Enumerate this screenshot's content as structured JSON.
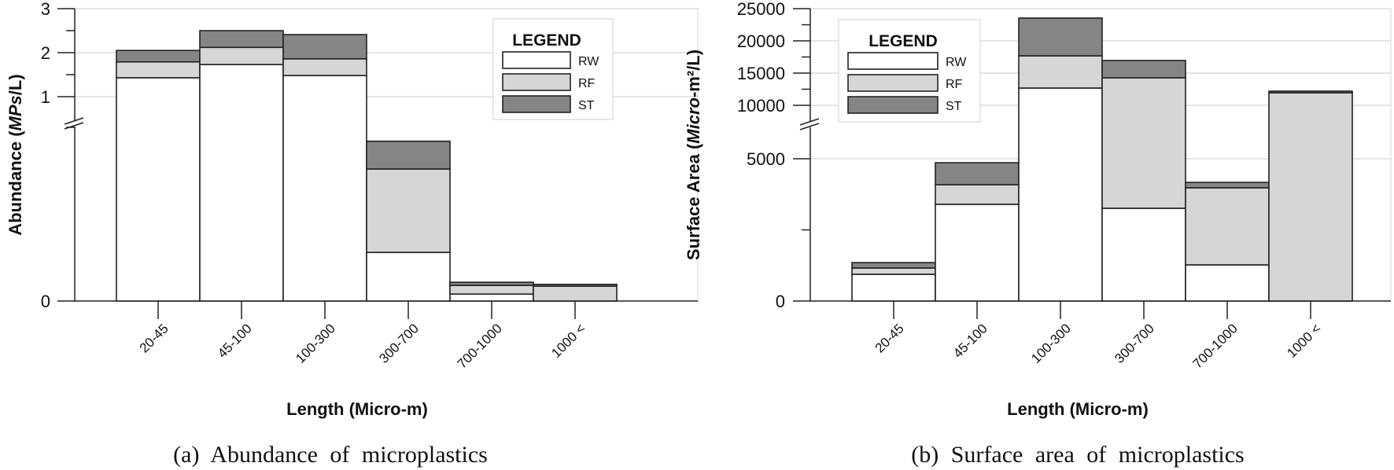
{
  "colors": {
    "RW": "#ffffff",
    "RF": "#d6d6d6",
    "ST": "#858585",
    "stroke": "#222222",
    "grid": "#c8c8c8"
  },
  "chart_data": [
    {
      "type": "bar",
      "stacked": true,
      "title": "(a) Abundance of microplastics",
      "xlabel": "Length (Micro-m)",
      "ylabel_parts": [
        "Abundance (",
        "MPs",
        "/L)"
      ],
      "ylim": [
        0,
        3
      ],
      "axis_break": [
        0.5,
        0.9
      ],
      "yticks": [
        "0",
        "1",
        "2",
        "3"
      ],
      "ytick_values": [
        0,
        1,
        2,
        3
      ],
      "grid": true,
      "legend": {
        "title": "LEGEND",
        "placement": "top-right",
        "entries": [
          "RW",
          "RF",
          "ST"
        ]
      },
      "categories": [
        "20-45",
        "45-100",
        "100-300",
        "300-700",
        "700-1000",
        "1000 <"
      ],
      "series": [
        {
          "name": "RW",
          "values": [
            1.43,
            1.73,
            1.48,
            0.14,
            0.02,
            0.0
          ]
        },
        {
          "name": "RF",
          "values": [
            0.36,
            0.39,
            0.38,
            0.24,
            0.025,
            0.043
          ]
        },
        {
          "name": "ST",
          "values": [
            0.26,
            0.38,
            0.55,
            0.08,
            0.009,
            0.005
          ]
        }
      ]
    },
    {
      "type": "bar",
      "stacked": true,
      "title": "(b) Surface area of microplastics",
      "xlabel": "Length (Micro-m)",
      "ylabel_parts": [
        "Surface Area (",
        "Micro",
        "-m²/L)"
      ],
      "ylim": [
        0,
        25000
      ],
      "axis_break": [
        6500,
        9000
      ],
      "yticks": [
        "0",
        "5000",
        "10000",
        "15000",
        "20000",
        "25000"
      ],
      "ytick_values": [
        0,
        5000,
        10000,
        15000,
        20000,
        25000
      ],
      "grid": true,
      "legend": {
        "title": "LEGEND",
        "placement": "top-left",
        "entries": [
          "RW",
          "RF",
          "ST"
        ]
      },
      "categories": [
        "20-45",
        "45-100",
        "100-300",
        "300-700",
        "700-1000",
        "1000 <"
      ],
      "series": [
        {
          "name": "RW",
          "values": [
            940,
            3400,
            12680,
            3260,
            1270,
            0
          ]
        },
        {
          "name": "RF",
          "values": [
            220,
            690,
            5000,
            11010,
            2710,
            11950
          ]
        },
        {
          "name": "ST",
          "values": [
            190,
            770,
            5860,
            2680,
            190,
            250
          ]
        }
      ]
    }
  ]
}
